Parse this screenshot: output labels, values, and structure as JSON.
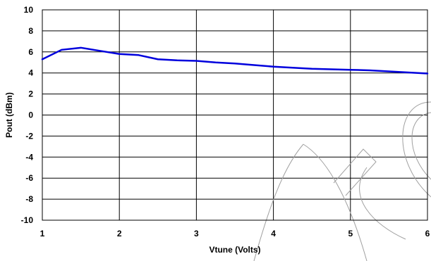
{
  "chart_data": {
    "type": "line",
    "title": "",
    "xlabel": "Vtune (Volts)",
    "ylabel": "Pout (dBm)",
    "xlim": [
      1,
      6
    ],
    "ylim": [
      -10,
      10
    ],
    "x_ticks": [
      1,
      2,
      3,
      4,
      5,
      6
    ],
    "y_ticks": [
      10,
      8,
      6,
      4,
      2,
      0,
      -2,
      -4,
      -6,
      -8,
      -10
    ],
    "grid": true,
    "legend": "none",
    "series": [
      {
        "color": "#0000dd",
        "x": [
          1.0,
          1.25,
          1.5,
          1.75,
          2.0,
          2.25,
          2.5,
          2.75,
          3.0,
          3.25,
          3.5,
          3.75,
          4.0,
          4.25,
          4.5,
          4.75,
          5.0,
          5.25,
          5.5,
          5.75,
          6.0
        ],
        "y": [
          5.3,
          6.2,
          6.4,
          6.1,
          5.8,
          5.7,
          5.3,
          5.2,
          5.15,
          5.0,
          4.9,
          4.75,
          4.6,
          4.5,
          4.4,
          4.35,
          4.3,
          4.25,
          4.15,
          4.05,
          3.95
        ]
      }
    ]
  }
}
